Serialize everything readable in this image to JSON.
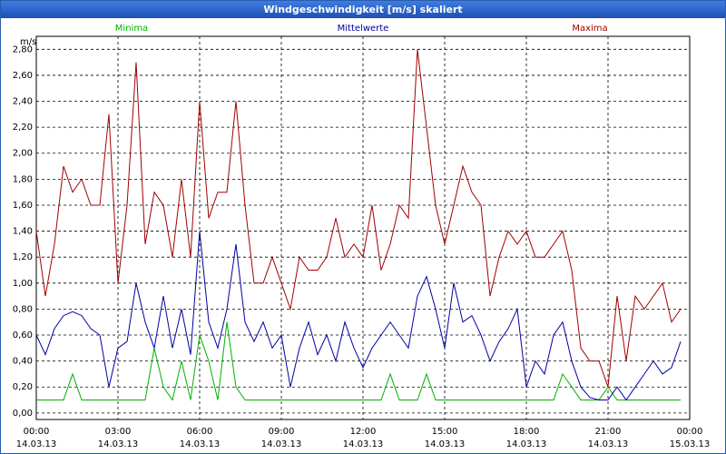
{
  "chart_data": {
    "type": "line",
    "title": "Windgeschwindigkeit [m/s] skaliert",
    "y_label": "m/s",
    "x": [
      0,
      20,
      40,
      60,
      80,
      100,
      120,
      140,
      160,
      180,
      200,
      220,
      240,
      260,
      280,
      300,
      320,
      340,
      360,
      380,
      400,
      420,
      440,
      460,
      480,
      500,
      520,
      540,
      560,
      580,
      600,
      620,
      640,
      660,
      680,
      700,
      720,
      740,
      760,
      780,
      800,
      820,
      840,
      860,
      880,
      900,
      920,
      940,
      960,
      980,
      1000,
      1020,
      1040,
      1060,
      1080,
      1100,
      1120,
      1140,
      1160,
      1180,
      1200,
      1220,
      1240,
      1260,
      1280,
      1300,
      1320,
      1340,
      1360,
      1380,
      1400,
      1420
    ],
    "series": [
      {
        "name": "Minima",
        "color": "#00b000",
        "values": [
          0.1,
          0.1,
          0.1,
          0.1,
          0.3,
          0.1,
          0.1,
          0.1,
          0.1,
          0.1,
          0.1,
          0.1,
          0.1,
          0.5,
          0.2,
          0.1,
          0.4,
          0.1,
          0.6,
          0.4,
          0.1,
          0.7,
          0.2,
          0.1,
          0.1,
          0.1,
          0.1,
          0.1,
          0.1,
          0.1,
          0.1,
          0.1,
          0.1,
          0.1,
          0.1,
          0.1,
          0.1,
          0.1,
          0.1,
          0.3,
          0.1,
          0.1,
          0.1,
          0.3,
          0.1,
          0.1,
          0.1,
          0.1,
          0.1,
          0.1,
          0.1,
          0.1,
          0.1,
          0.1,
          0.1,
          0.1,
          0.1,
          0.1,
          0.3,
          0.2,
          0.1,
          0.1,
          0.1,
          0.2,
          0.1,
          0.1,
          0.1,
          0.1,
          0.1,
          0.1,
          0.1,
          0.1
        ]
      },
      {
        "name": "Mittelwerte",
        "color": "#0000a0",
        "values": [
          0.6,
          0.45,
          0.65,
          0.75,
          0.78,
          0.75,
          0.65,
          0.6,
          0.2,
          0.5,
          0.55,
          1.0,
          0.7,
          0.5,
          0.9,
          0.5,
          0.8,
          0.45,
          1.4,
          0.7,
          0.5,
          0.8,
          1.3,
          0.7,
          0.55,
          0.7,
          0.5,
          0.6,
          0.2,
          0.5,
          0.7,
          0.45,
          0.6,
          0.4,
          0.7,
          0.5,
          0.35,
          0.5,
          0.6,
          0.7,
          0.6,
          0.5,
          0.9,
          1.05,
          0.8,
          0.5,
          1.0,
          0.7,
          0.75,
          0.6,
          0.4,
          0.55,
          0.65,
          0.8,
          0.2,
          0.4,
          0.3,
          0.6,
          0.7,
          0.4,
          0.2,
          0.12,
          0.1,
          0.1,
          0.2,
          0.1,
          0.2,
          0.3,
          0.4,
          0.3,
          0.35,
          0.55
        ]
      },
      {
        "name": "Maxima",
        "color": "#a00000",
        "values": [
          1.4,
          0.9,
          1.3,
          1.9,
          1.7,
          1.8,
          1.6,
          1.6,
          2.3,
          1.0,
          1.6,
          2.7,
          1.3,
          1.7,
          1.6,
          1.2,
          1.8,
          1.2,
          2.4,
          1.5,
          1.7,
          1.7,
          2.4,
          1.6,
          1.0,
          1.0,
          1.2,
          1.0,
          0.8,
          1.2,
          1.1,
          1.1,
          1.2,
          1.5,
          1.2,
          1.3,
          1.2,
          1.6,
          1.1,
          1.3,
          1.6,
          1.5,
          2.8,
          2.2,
          1.6,
          1.3,
          1.6,
          1.9,
          1.7,
          1.6,
          0.9,
          1.2,
          1.4,
          1.3,
          1.4,
          1.2,
          1.2,
          1.3,
          1.4,
          1.1,
          0.5,
          0.4,
          0.4,
          0.2,
          0.9,
          0.4,
          0.9,
          0.8,
          0.9,
          1.0,
          0.7,
          0.8
        ]
      }
    ],
    "xlim": [
      0,
      1440
    ],
    "xticks": [
      {
        "value": 0,
        "label": "00:00",
        "date": "14.03.13"
      },
      {
        "value": 180,
        "label": "03:00",
        "date": "14.03.13"
      },
      {
        "value": 360,
        "label": "06:00",
        "date": "14.03.13"
      },
      {
        "value": 540,
        "label": "09:00",
        "date": "14.03.13"
      },
      {
        "value": 720,
        "label": "12:00",
        "date": "14.03.13"
      },
      {
        "value": 900,
        "label": "15:00",
        "date": "14.03.13"
      },
      {
        "value": 1080,
        "label": "18:00",
        "date": "14.03.13"
      },
      {
        "value": 1260,
        "label": "21:00",
        "date": "14.03.13"
      },
      {
        "value": 1440,
        "label": "00:00",
        "date": "15.03.13"
      }
    ],
    "ylim": [
      -0.05,
      2.9
    ],
    "yticks": [
      {
        "value": 0,
        "label": "0,00"
      },
      {
        "value": 0.2,
        "label": "0,20"
      },
      {
        "value": 0.4,
        "label": "0,40"
      },
      {
        "value": 0.6,
        "label": "0,60"
      },
      {
        "value": 0.8,
        "label": "0,80"
      },
      {
        "value": 1.0,
        "label": "1,00"
      },
      {
        "value": 1.2,
        "label": "1,20"
      },
      {
        "value": 1.4,
        "label": "1,40"
      },
      {
        "value": 1.6,
        "label": "1,60"
      },
      {
        "value": 1.8,
        "label": "1,80"
      },
      {
        "value": 2.0,
        "label": "2,00"
      },
      {
        "value": 2.2,
        "label": "2,20"
      },
      {
        "value": 2.4,
        "label": "2,40"
      },
      {
        "value": 2.6,
        "label": "2,60"
      },
      {
        "value": 2.8,
        "label": "2,80"
      }
    ],
    "grid": true
  }
}
